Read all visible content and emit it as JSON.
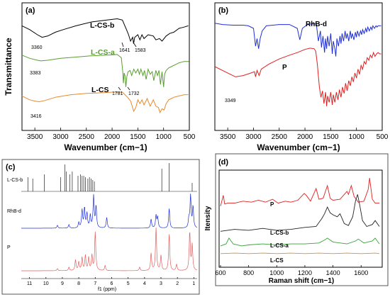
{
  "chart_data": [
    {
      "panel": "(a)",
      "type": "line",
      "ylabel": "Transmittance",
      "xlabel": "Wavenumber (cm−1)",
      "xlim": [
        3750,
        500
      ],
      "xticks": [
        "3500",
        "3000",
        "2500",
        "2000",
        "1500",
        "1000",
        "500"
      ],
      "xtick_values": [
        3500,
        3000,
        2500,
        2000,
        1500,
        1000,
        500
      ],
      "y_ticks": "none",
      "series": [
        {
          "name": "L-CS-b",
          "color": "#000000",
          "x": [
            3750,
            3600,
            3450,
            3360,
            3250,
            3100,
            2950,
            2700,
            2400,
            2100,
            1900,
            1800,
            1720,
            1680,
            1641,
            1600,
            1583,
            1560,
            1500,
            1460,
            1420,
            1380,
            1300,
            1200,
            1150,
            1080,
            1030,
            950,
            880,
            800,
            700,
            600,
            520
          ],
          "y": [
            82,
            79,
            75,
            73,
            74,
            77,
            79,
            82,
            85,
            86.5,
            87.5,
            86.5,
            79,
            75,
            70,
            73,
            68,
            73,
            75,
            71,
            75,
            72,
            75,
            74,
            71,
            72,
            70,
            74,
            76,
            77,
            80,
            81,
            82
          ]
        },
        {
          "name": "L-CS-a",
          "color": "#5a9e2f",
          "x": [
            3750,
            3600,
            3450,
            3383,
            3250,
            3000,
            2700,
            2400,
            2100,
            1900,
            1820,
            1790,
            1781,
            1765,
            1750,
            1732,
            1715,
            1690,
            1650,
            1620,
            1580,
            1540,
            1500,
            1470,
            1440,
            1400,
            1370,
            1340,
            1300,
            1260,
            1220,
            1190,
            1150,
            1120,
            1090,
            1060,
            1030,
            1000,
            980,
            950,
            900,
            850,
            800,
            750,
            700,
            650,
            600,
            550,
            510
          ],
          "y": [
            59,
            56.5,
            55,
            54.5,
            55,
            56.5,
            57.5,
            58.5,
            59,
            59.5,
            57,
            45,
            37,
            45,
            43,
            34,
            42,
            46,
            47,
            43,
            48,
            45,
            48,
            44,
            48,
            43,
            47,
            40,
            48,
            44,
            46,
            39,
            47,
            43,
            47,
            36,
            46,
            34,
            44,
            47,
            49,
            50,
            51,
            52,
            53,
            53.5,
            54,
            54,
            54
          ]
        },
        {
          "name": "L-CS",
          "color": "#e8892b",
          "x": [
            3750,
            3600,
            3500,
            3416,
            3300,
            3100,
            2950,
            2800,
            2500,
            2200,
            2000,
            1900,
            1800,
            1700,
            1640,
            1580,
            1540,
            1500,
            1460,
            1420,
            1380,
            1320,
            1260,
            1200,
            1150,
            1100,
            1070,
            1030,
            990,
            950,
            900,
            850,
            800,
            700,
            600,
            520
          ],
          "y": [
            27,
            24,
            23,
            22.5,
            23.5,
            26,
            27,
            28,
            29,
            29.5,
            30,
            30,
            30,
            26,
            23,
            15,
            18,
            24,
            21,
            24,
            20,
            25,
            19,
            24,
            19,
            18,
            14,
            17,
            16,
            21,
            24,
            25,
            26,
            27,
            28,
            28
          ]
        }
      ],
      "annotations": [
        "3360",
        "1641",
        "1583",
        "3383",
        "1781",
        "1732",
        "3416"
      ]
    },
    {
      "panel": "(b)",
      "type": "line",
      "xlabel": "Wavenumber (cm−1)",
      "xlim": [
        3750,
        500
      ],
      "xticks": [
        "3500",
        "3000",
        "2500",
        "2000",
        "1500",
        "1000",
        "500"
      ],
      "xtick_values": [
        3500,
        3000,
        2500,
        2000,
        1500,
        1000,
        500
      ],
      "y_ticks": "none",
      "series": [
        {
          "name": "RhB-d",
          "color": "#1f2fd6",
          "x": [
            3750,
            3600,
            3400,
            3200,
            3100,
            3000,
            2960,
            2930,
            2900,
            2870,
            2830,
            2750,
            2500,
            2300,
            2150,
            2100,
            2050,
            1950,
            1850,
            1780,
            1740,
            1700,
            1680,
            1650,
            1620,
            1600,
            1580,
            1560,
            1530,
            1500,
            1470,
            1450,
            1420,
            1400,
            1380,
            1350,
            1320,
            1300,
            1280,
            1250,
            1220,
            1200,
            1180,
            1150,
            1120,
            1100,
            1080,
            1050,
            1020,
            1000,
            980,
            950,
            920,
            900,
            880,
            850,
            820,
            800,
            780,
            750,
            720,
            700,
            680,
            650,
            620,
            600,
            580,
            550,
            520
          ],
          "y": [
            84,
            83,
            82.5,
            82.5,
            82,
            80,
            66,
            72,
            64,
            72,
            78,
            82,
            83,
            83,
            80,
            71,
            80,
            83,
            83.5,
            83.5,
            70,
            78,
            65,
            74,
            61,
            72,
            64,
            74,
            66,
            76,
            60,
            70,
            64,
            58,
            72,
            66,
            74,
            68,
            76,
            70,
            78,
            72,
            76,
            70,
            78,
            72,
            76,
            71,
            77,
            73,
            78,
            74,
            78,
            75,
            79,
            76,
            80,
            77,
            81,
            78,
            81,
            79,
            82,
            80,
            82,
            81,
            82,
            82,
            82
          ]
        },
        {
          "name": "P",
          "color": "#e02020",
          "x": [
            3750,
            3600,
            3450,
            3349,
            3200,
            3050,
            2980,
            2960,
            2930,
            2890,
            2850,
            2700,
            2500,
            2300,
            2150,
            2000,
            1900,
            1820,
            1790,
            1760,
            1720,
            1690,
            1660,
            1630,
            1600,
            1580,
            1560,
            1530,
            1500,
            1470,
            1450,
            1420,
            1390,
            1360,
            1330,
            1300,
            1270,
            1240,
            1210,
            1180,
            1150,
            1120,
            1090,
            1060,
            1030,
            1000,
            970,
            940,
            910,
            880,
            850,
            820,
            790,
            760,
            730,
            700,
            670,
            640,
            610,
            580,
            550,
            520
          ],
          "y": [
            50,
            47,
            44,
            42,
            43,
            45,
            46,
            42,
            47,
            43,
            48,
            52,
            56,
            59,
            61,
            63.5,
            64.5,
            64,
            62,
            52,
            34,
            26,
            31,
            21,
            30,
            19,
            27,
            22,
            30,
            20,
            28,
            22,
            30,
            24,
            32,
            26,
            34,
            29,
            37,
            31,
            39,
            35,
            42,
            38,
            45,
            41,
            48,
            44,
            51,
            48,
            54,
            52,
            57,
            55,
            59,
            57,
            61,
            58,
            60,
            61,
            60,
            60
          ]
        }
      ],
      "annotations": [
        "3349"
      ]
    },
    {
      "panel": "(c)",
      "type": "line",
      "xlabel": "f1 (ppm)",
      "xlim": [
        11.5,
        0.8
      ],
      "xticks": [
        "11",
        "10",
        "9",
        "8",
        "7",
        "6",
        "5",
        "4",
        "3",
        "2",
        "1"
      ],
      "xtick_values": [
        11,
        10,
        9,
        8,
        7,
        6,
        5,
        4,
        3,
        2,
        1
      ],
      "series": [
        {
          "name": "L-CS-b",
          "color": "#222222",
          "peaks": [
            [
              11.1,
              0.5
            ],
            [
              10.8,
              0.45
            ],
            [
              10.1,
              0.6
            ],
            [
              9.1,
              0.5
            ],
            [
              8.85,
              0.95
            ],
            [
              8.75,
              0.7
            ],
            [
              8.55,
              0.6
            ],
            [
              8.4,
              0.7
            ],
            [
              8.05,
              0.55
            ],
            [
              7.9,
              0.6
            ],
            [
              7.8,
              0.55
            ],
            [
              7.7,
              0.55
            ],
            [
              7.6,
              0.5
            ],
            [
              7.45,
              0.45
            ],
            [
              7.35,
              0.5
            ],
            [
              7.25,
              0.45
            ],
            [
              7.15,
              0.4
            ],
            [
              7.05,
              0.35
            ],
            [
              2.95,
              0.8
            ],
            [
              2.5,
              1.0
            ],
            [
              1.1,
              0.3
            ]
          ]
        },
        {
          "name": "RhB-d",
          "color": "#1f2fd6",
          "peaks": [
            [
              9.3,
              0.08
            ],
            [
              8.6,
              0.1
            ],
            [
              8.0,
              0.15
            ],
            [
              7.8,
              0.5
            ],
            [
              7.65,
              0.55
            ],
            [
              7.5,
              0.4
            ],
            [
              7.3,
              0.35
            ],
            [
              7.1,
              0.9
            ],
            [
              6.95,
              0.6
            ],
            [
              6.3,
              0.3
            ],
            [
              3.6,
              0.25
            ],
            [
              3.3,
              0.35
            ],
            [
              3.2,
              0.3
            ],
            [
              2.5,
              0.55
            ],
            [
              1.3,
              0.25
            ],
            [
              1.2,
              0.9
            ],
            [
              1.05,
              0.6
            ]
          ]
        },
        {
          "name": "P",
          "color": "#e06060",
          "peaks": [
            [
              9.3,
              0.05
            ],
            [
              8.6,
              0.08
            ],
            [
              8.2,
              0.25
            ],
            [
              8.0,
              0.2
            ],
            [
              7.8,
              0.3
            ],
            [
              7.6,
              0.35
            ],
            [
              7.4,
              0.3
            ],
            [
              7.2,
              0.35
            ],
            [
              7.0,
              0.9
            ],
            [
              6.4,
              0.12
            ],
            [
              4.3,
              0.08
            ],
            [
              3.6,
              0.4
            ],
            [
              3.3,
              1.0
            ],
            [
              3.0,
              0.35
            ],
            [
              2.5,
              0.85
            ],
            [
              2.05,
              0.15
            ],
            [
              1.25,
              0.9
            ],
            [
              1.1,
              0.6
            ]
          ]
        }
      ]
    },
    {
      "panel": "(d)",
      "type": "line",
      "ylabel": "Itensity",
      "xlabel": "Raman shift (cm−1)",
      "xlim": [
        590,
        1750
      ],
      "xticks": [
        "600",
        "800",
        "1000",
        "1200",
        "1400",
        "1600"
      ],
      "xtick_values": [
        600,
        800,
        1000,
        1200,
        1400,
        1600
      ],
      "series": [
        {
          "name": "P",
          "color": "#e02020",
          "x": [
            600,
            620,
            630,
            650,
            700,
            760,
            820,
            870,
            920,
            970,
            1010,
            1060,
            1100,
            1150,
            1195,
            1210,
            1240,
            1280,
            1300,
            1330,
            1360,
            1380,
            1400,
            1450,
            1500,
            1510,
            1530,
            1550,
            1580,
            1620,
            1650,
            1660,
            1680,
            1700,
            1730
          ],
          "y": [
            63,
            74,
            65,
            66,
            66,
            68,
            67,
            69,
            67,
            70,
            66,
            68,
            67,
            69,
            76,
            74,
            68,
            81,
            70,
            71,
            84,
            71,
            69,
            70,
            78,
            75,
            84,
            73,
            67,
            68,
            80,
            92,
            70,
            66,
            66
          ]
        },
        {
          "name": "L-CS-b",
          "color": "#222222",
          "x": [
            600,
            650,
            700,
            800,
            900,
            1000,
            1100,
            1200,
            1280,
            1320,
            1340,
            1360,
            1380,
            1400,
            1430,
            1450,
            1480,
            1510,
            1540,
            1560,
            1575,
            1590,
            1610,
            1640,
            1680,
            1700,
            1730
          ],
          "y": [
            37,
            38,
            39,
            38,
            40,
            38,
            39,
            41,
            42,
            50,
            55,
            62,
            56,
            54,
            52,
            55,
            45,
            43,
            52,
            68,
            75,
            64,
            48,
            42,
            44,
            48,
            42
          ]
        },
        {
          "name": "L-CS-a",
          "color": "#3aa03a",
          "x": [
            600,
            640,
            660,
            690,
            750,
            800,
            900,
            1000,
            1100,
            1200,
            1300,
            1340,
            1360,
            1400,
            1500,
            1560,
            1580,
            1620,
            1680,
            1700,
            1730
          ],
          "y": [
            22,
            24,
            30,
            24,
            22,
            23,
            24,
            23,
            24,
            24,
            25,
            28,
            30,
            26,
            24,
            27,
            29,
            25,
            27,
            30,
            24
          ]
        },
        {
          "name": "L-CS",
          "color": "#e8892b",
          "x": [
            600,
            700,
            800,
            900,
            1000,
            1100,
            1200,
            1300,
            1400,
            1500,
            1600,
            1700,
            1730
          ],
          "y": [
            14,
            14.5,
            14,
            14.5,
            14,
            14.5,
            14,
            14.5,
            14,
            14.5,
            14,
            14.5,
            14
          ]
        }
      ]
    }
  ]
}
